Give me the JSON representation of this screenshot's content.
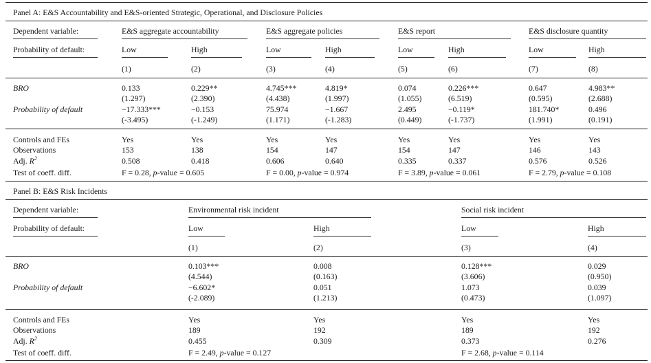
{
  "panelA": {
    "title": "Panel A: E&S Accountability and E&S-oriented Strategic, Operational, and Disclosure Policies",
    "dep_label": "Dependent variable:",
    "prob_label": "Probability of default:",
    "groups": [
      "E&S aggregate accountability",
      "E&S aggregate policies",
      "E&S report",
      "E&S disclosure quantity"
    ],
    "sub": [
      "Low",
      "High",
      "Low",
      "High",
      "Low",
      "High",
      "Low",
      "High"
    ],
    "nums": [
      "(1)",
      "(2)",
      "(3)",
      "(4)",
      "(5)",
      "(6)",
      "(7)",
      "(8)"
    ],
    "rows": [
      {
        "label": "BRO",
        "coef": [
          "0.133",
          "0.229**",
          "4.745***",
          "4.819*",
          "0.074",
          "0.226***",
          "0.647",
          "4.983**"
        ],
        "t": [
          "(1.297)",
          "(2.390)",
          "(4.438)",
          "(1.997)",
          "(1.055)",
          "(6.519)",
          "(0.595)",
          "(2.688)"
        ]
      },
      {
        "label": "Probability of default",
        "coef": [
          "−17.333***",
          "−0.153",
          "75.974",
          "−1.667",
          "2.495",
          "−0.119*",
          "181.740*",
          "0.496"
        ],
        "t": [
          "(-3.495)",
          "(-1.249)",
          "(1.171)",
          "(-1.283)",
          "(0.449)",
          "(-1.737)",
          "(1.991)",
          "(0.191)"
        ]
      }
    ],
    "controls_label": "Controls and FEs",
    "controls": [
      "Yes",
      "Yes",
      "Yes",
      "Yes",
      "Yes",
      "Yes",
      "Yes",
      "Yes"
    ],
    "obs_label": "Observations",
    "obs": [
      "153",
      "138",
      "154",
      "147",
      "154",
      "147",
      "146",
      "143"
    ],
    "adj_label": "Adj. ",
    "adj_sym": "R",
    "adj_sup": "2",
    "adj": [
      "0.508",
      "0.418",
      "0.606",
      "0.640",
      "0.335",
      "0.337",
      "0.576",
      "0.526"
    ],
    "test_label": "Test of coeff. diff.",
    "tests": [
      {
        "a": "F = 0.28, ",
        "p": "p",
        "b": "-value = 0.605"
      },
      {
        "a": "F = 0.00, ",
        "p": "p",
        "b": "-value = 0.974"
      },
      {
        "a": "F = 3.89, ",
        "p": "p",
        "b": "-value = 0.061"
      },
      {
        "a": "F = 2.79, ",
        "p": "p",
        "b": "-value = 0.108"
      }
    ]
  },
  "panelB": {
    "title": "Panel B: E&S Risk Incidents",
    "dep_label": "Dependent variable:",
    "prob_label": "Probability of default:",
    "groups": [
      "Environmental risk incident",
      "Social risk incident"
    ],
    "sub": [
      "Low",
      "High",
      "Low",
      "High"
    ],
    "nums": [
      "(1)",
      "(2)",
      "(3)",
      "(4)"
    ],
    "rows": [
      {
        "label": "BRO",
        "coef": [
          "0.103***",
          "0.008",
          "0.128***",
          "0.029"
        ],
        "t": [
          "(4.544)",
          "(0.163)",
          "(3.606)",
          "(0.950)"
        ]
      },
      {
        "label": "Probability of default",
        "coef": [
          "−6.602*",
          "0.051",
          "1.073",
          "0.039"
        ],
        "t": [
          "(-2.089)",
          "(1.213)",
          "(0.473)",
          "(1.097)"
        ]
      }
    ],
    "controls_label": "Controls and FEs",
    "controls": [
      "Yes",
      "Yes",
      "Yes",
      "Yes"
    ],
    "obs_label": "Observations",
    "obs": [
      "189",
      "192",
      "189",
      "192"
    ],
    "adj_label": "Adj. ",
    "adj_sym": "R",
    "adj_sup": "2",
    "adj": [
      "0.455",
      "0.309",
      "0.373",
      "0.276"
    ],
    "test_label": "Test of coeff. diff.",
    "tests": [
      {
        "a": "F = 2.49, ",
        "p": "p",
        "b": "-value = 0.127"
      },
      {
        "a": "F = 2.68, ",
        "p": "p",
        "b": "-value = 0.114"
      }
    ]
  }
}
